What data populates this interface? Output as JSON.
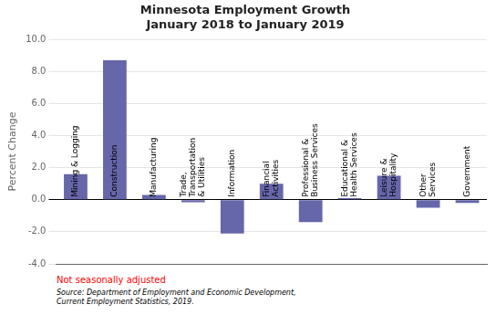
{
  "chart_data": {
    "type": "bar",
    "title": "Minnesota Employment Growth\nJanuary 2018 to January 2019",
    "y_label": "Percent Change",
    "categories": [
      "Mining & Logging",
      "Construction",
      "Manufacturing",
      "Trade,\nTransportation\n& Utilities",
      "Information",
      "Financial\nActivities",
      "Professional &\nBusiness Services",
      "Educational &\nHealth Services",
      "Leisure &\nHospitality",
      "Other\nServices",
      "Government"
    ],
    "values": [
      1.6,
      8.7,
      0.3,
      -0.15,
      -2.1,
      1.0,
      -1.4,
      0.1,
      1.5,
      -0.5,
      -0.2
    ],
    "color": "#6666aa",
    "ylim": [
      -4.0,
      10.0
    ],
    "yticks": [
      {
        "value": -4.0,
        "label": "-4.0"
      },
      {
        "value": -2.0,
        "label": "-2.0"
      },
      {
        "value": 0.0,
        "label": "0.0"
      },
      {
        "value": 2.0,
        "label": "2.0"
      },
      {
        "value": 4.0,
        "label": "4.0"
      },
      {
        "value": 6.0,
        "label": "6.0"
      },
      {
        "value": 8.0,
        "label": "8.0"
      },
      {
        "value": 10.0,
        "label": "10.0"
      }
    ],
    "grid": true,
    "annotations": [
      {
        "text": "Not seasonally adjusted",
        "color": "red"
      },
      {
        "text": "Source: Department of Employment and Economic Development,\nCurrent Employment Statistics, 2019."
      }
    ]
  }
}
